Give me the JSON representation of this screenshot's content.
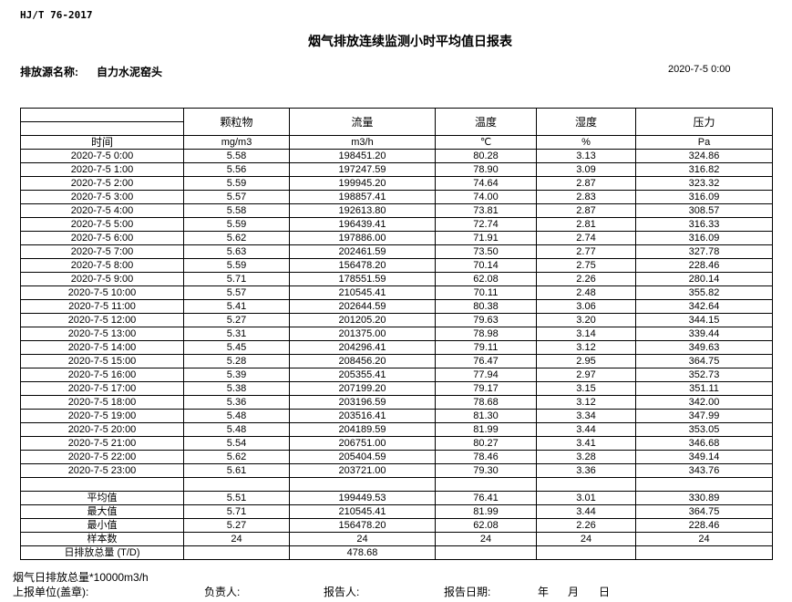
{
  "standard": "HJ/T  76-2017",
  "title": "烟气排放连续监测小时平均值日报表",
  "source_label": "排放源名称:",
  "source_value": "自力水泥窑头",
  "report_date": "2020-7-5 0:00",
  "table": {
    "time_header": "时间",
    "columns": [
      {
        "name": "颗粒物",
        "unit": "mg/m3"
      },
      {
        "name": "流量",
        "unit": "m3/h"
      },
      {
        "name": "温度",
        "unit": "℃"
      },
      {
        "name": "湿度",
        "unit": "%"
      },
      {
        "name": "压力",
        "unit": "Pa"
      }
    ],
    "rows": [
      [
        "2020-7-5 0:00",
        "5.58",
        "198451.20",
        "80.28",
        "3.13",
        "324.86"
      ],
      [
        "2020-7-5 1:00",
        "5.56",
        "197247.59",
        "78.90",
        "3.09",
        "316.82"
      ],
      [
        "2020-7-5 2:00",
        "5.59",
        "199945.20",
        "74.64",
        "2.87",
        "323.32"
      ],
      [
        "2020-7-5 3:00",
        "5.57",
        "198857.41",
        "74.00",
        "2.83",
        "316.09"
      ],
      [
        "2020-7-5 4:00",
        "5.58",
        "192613.80",
        "73.81",
        "2.87",
        "308.57"
      ],
      [
        "2020-7-5 5:00",
        "5.59",
        "196439.41",
        "72.74",
        "2.81",
        "316.33"
      ],
      [
        "2020-7-5 6:00",
        "5.62",
        "197886.00",
        "71.91",
        "2.74",
        "316.09"
      ],
      [
        "2020-7-5 7:00",
        "5.63",
        "202461.59",
        "73.50",
        "2.77",
        "327.78"
      ],
      [
        "2020-7-5 8:00",
        "5.59",
        "156478.20",
        "70.14",
        "2.75",
        "228.46"
      ],
      [
        "2020-7-5 9:00",
        "5.71",
        "178551.59",
        "62.08",
        "2.26",
        "280.14"
      ],
      [
        "2020-7-5 10:00",
        "5.57",
        "210545.41",
        "70.11",
        "2.48",
        "355.82"
      ],
      [
        "2020-7-5 11:00",
        "5.41",
        "202644.59",
        "80.38",
        "3.06",
        "342.64"
      ],
      [
        "2020-7-5 12:00",
        "5.27",
        "201205.20",
        "79.63",
        "3.20",
        "344.15"
      ],
      [
        "2020-7-5 13:00",
        "5.31",
        "201375.00",
        "78.98",
        "3.14",
        "339.44"
      ],
      [
        "2020-7-5 14:00",
        "5.45",
        "204296.41",
        "79.11",
        "3.12",
        "349.63"
      ],
      [
        "2020-7-5 15:00",
        "5.28",
        "208456.20",
        "76.47",
        "2.95",
        "364.75"
      ],
      [
        "2020-7-5 16:00",
        "5.39",
        "205355.41",
        "77.94",
        "2.97",
        "352.73"
      ],
      [
        "2020-7-5 17:00",
        "5.38",
        "207199.20",
        "79.17",
        "3.15",
        "351.11"
      ],
      [
        "2020-7-5 18:00",
        "5.36",
        "203196.59",
        "78.68",
        "3.12",
        "342.00"
      ],
      [
        "2020-7-5 19:00",
        "5.48",
        "203516.41",
        "81.30",
        "3.34",
        "347.99"
      ],
      [
        "2020-7-5 20:00",
        "5.48",
        "204189.59",
        "81.99",
        "3.44",
        "353.05"
      ],
      [
        "2020-7-5 21:00",
        "5.54",
        "206751.00",
        "80.27",
        "3.41",
        "346.68"
      ],
      [
        "2020-7-5 22:00",
        "5.62",
        "205404.59",
        "78.46",
        "3.28",
        "349.14"
      ],
      [
        "2020-7-5 23:00",
        "5.61",
        "203721.00",
        "79.30",
        "3.36",
        "343.76"
      ]
    ],
    "summary": [
      [
        "平均值",
        "5.51",
        "199449.53",
        "76.41",
        "3.01",
        "330.89"
      ],
      [
        "最大值",
        "5.71",
        "210545.41",
        "81.99",
        "3.44",
        "364.75"
      ],
      [
        "最小值",
        "5.27",
        "156478.20",
        "62.08",
        "2.26",
        "228.46"
      ],
      [
        "样本数",
        "24",
        "24",
        "24",
        "24",
        "24"
      ],
      [
        "日排放总量 (T/D)",
        "",
        "478.68",
        "",
        "",
        ""
      ]
    ]
  },
  "footer": {
    "note": "烟气日排放总量*10000m3/h",
    "unit_label": "上报单位(盖章):",
    "responsible_label": "负责人:",
    "reporter_label": "报告人:",
    "report_date_label": "报告日期:",
    "year": "年",
    "month": "月",
    "day": "日"
  }
}
